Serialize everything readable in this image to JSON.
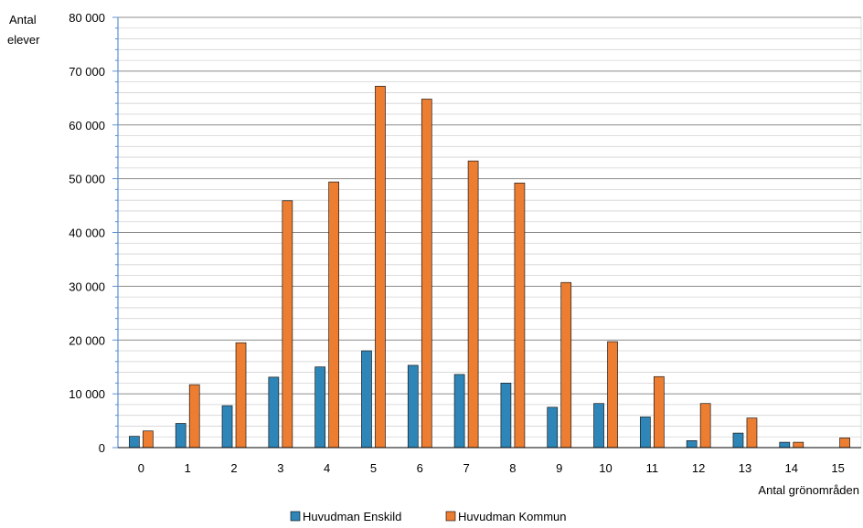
{
  "chart_data": {
    "type": "bar",
    "xlabel": "Antal grönområden",
    "ylabel": [
      "Antal",
      "elever"
    ],
    "ylim": [
      0,
      80000
    ],
    "ytick_step": 10000,
    "yticks": [
      "0",
      "10 000",
      "20 000",
      "30 000",
      "40 000",
      "50 000",
      "60 000",
      "70 000",
      "80 000"
    ],
    "grid": true,
    "legend_position": "bottom",
    "categories": [
      "0",
      "1",
      "2",
      "3",
      "4",
      "5",
      "6",
      "7",
      "8",
      "9",
      "10",
      "11",
      "12",
      "13",
      "14",
      "15"
    ],
    "series": [
      {
        "name": "Huvudman Enskild",
        "color": "#2e86b8",
        "values": [
          2100,
          4500,
          7800,
          13100,
          15000,
          18000,
          15300,
          13600,
          12000,
          7500,
          8200,
          5700,
          1300,
          2700,
          1000,
          0
        ]
      },
      {
        "name": "Huvudman Kommun",
        "color": "#ed7d31",
        "values": [
          3100,
          11700,
          19500,
          45900,
          49400,
          67200,
          64800,
          53300,
          49200,
          30700,
          19700,
          13200,
          8200,
          5500,
          1000,
          1800
        ]
      }
    ]
  }
}
